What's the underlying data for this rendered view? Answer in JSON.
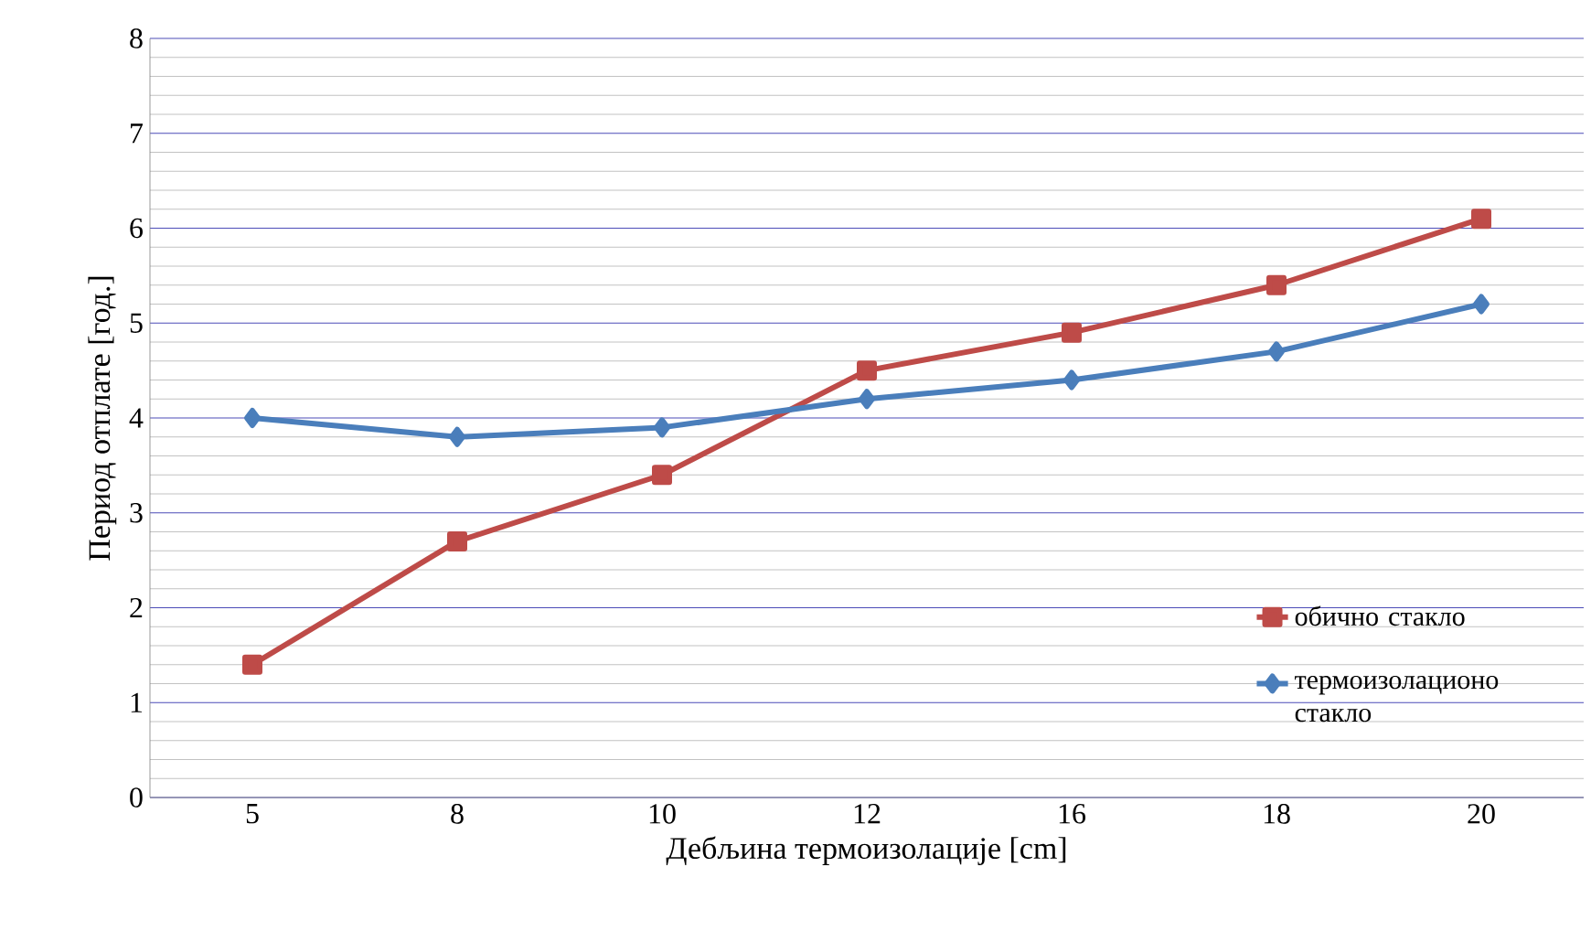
{
  "chart_data": {
    "type": "line",
    "xlabel": "Дебљина термоизолације [cm]",
    "ylabel": "Период отплате [год.]",
    "categories": [
      "5",
      "8",
      "10",
      "12",
      "16",
      "18",
      "20"
    ],
    "series": [
      {
        "name": "обично стакло",
        "color": "#be4b48",
        "marker": "square",
        "values": [
          1.4,
          2.7,
          3.4,
          4.5,
          4.9,
          5.4,
          6.1
        ]
      },
      {
        "name": "термоизолационо стакло",
        "color": "#4a7ebb",
        "marker": "diamond",
        "values": [
          4.0,
          3.8,
          3.9,
          4.2,
          4.4,
          4.7,
          5.2
        ]
      }
    ],
    "ylim": [
      0,
      8
    ],
    "yticks": [
      0,
      1,
      2,
      3,
      4,
      5,
      6,
      7,
      8
    ],
    "grid": "y",
    "legend": "right",
    "line_style": "solid"
  }
}
